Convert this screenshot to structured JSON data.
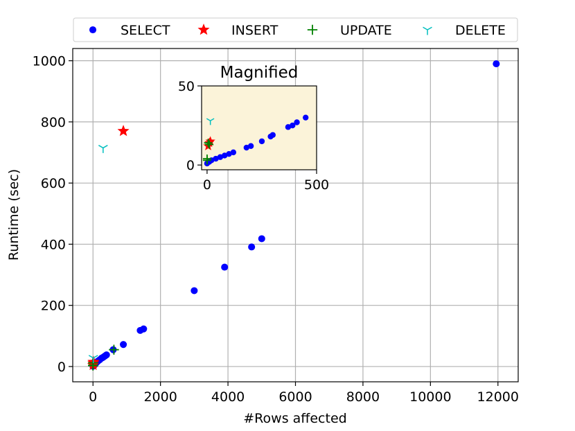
{
  "chart_data": {
    "type": "scatter",
    "xlabel": "#Rows affected",
    "ylabel": "Runtime (sec)",
    "xlim": [
      -600,
      12600
    ],
    "ylim": [
      -50,
      1040
    ],
    "xticks": [
      0,
      2000,
      4000,
      6000,
      8000,
      10000,
      12000
    ],
    "yticks": [
      0,
      200,
      400,
      600,
      800,
      1000
    ],
    "grid": true,
    "legend_position": "top",
    "series": [
      {
        "name": "SELECT",
        "marker": "dot",
        "color": "#0000ff",
        "points": [
          [
            0,
            1
          ],
          [
            10,
            2
          ],
          [
            20,
            3
          ],
          [
            40,
            5
          ],
          [
            60,
            7
          ],
          [
            80,
            10
          ],
          [
            120,
            15
          ],
          [
            150,
            18
          ],
          [
            200,
            22
          ],
          [
            250,
            27
          ],
          [
            300,
            30
          ],
          [
            350,
            34
          ],
          [
            400,
            38
          ],
          [
            600,
            55
          ],
          [
            900,
            72
          ],
          [
            1400,
            118
          ],
          [
            1500,
            123
          ],
          [
            3000,
            248
          ],
          [
            3900,
            325
          ],
          [
            4700,
            391
          ],
          [
            5000,
            418
          ],
          [
            11950,
            990
          ]
        ]
      },
      {
        "name": "INSERT",
        "marker": "star",
        "color": "#ff0000",
        "points": [
          [
            5,
            5
          ],
          [
            10,
            12
          ],
          [
            15,
            15
          ],
          [
            900,
            770
          ]
        ]
      },
      {
        "name": "UPDATE",
        "marker": "plus",
        "color": "#008000",
        "points": [
          [
            0,
            3
          ],
          [
            0,
            4
          ],
          [
            0,
            12
          ],
          [
            620,
            55
          ]
        ]
      },
      {
        "name": "DELETE",
        "marker": "tri",
        "color": "#00bfbf",
        "points": [
          [
            10,
            28
          ],
          [
            300,
            715
          ]
        ]
      }
    ],
    "inset": {
      "title": "Magnified",
      "xlim": [
        -25,
        500
      ],
      "ylim": [
        -3,
        50
      ],
      "xticks": [
        0,
        500
      ],
      "yticks": [
        0,
        50
      ],
      "background": "#fbf3d9",
      "series": [
        {
          "name": "SELECT",
          "points": [
            [
              0,
              1
            ],
            [
              10,
              2
            ],
            [
              20,
              3
            ],
            [
              40,
              4
            ],
            [
              60,
              5
            ],
            [
              80,
              6
            ],
            [
              100,
              7
            ],
            [
              120,
              8
            ],
            [
              180,
              11
            ],
            [
              200,
              12
            ],
            [
              250,
              15
            ],
            [
              290,
              18
            ],
            [
              300,
              19
            ],
            [
              370,
              24
            ],
            [
              390,
              25
            ],
            [
              410,
              27
            ],
            [
              450,
              30
            ]
          ]
        },
        {
          "name": "INSERT",
          "points": [
            [
              5,
              12
            ],
            [
              15,
              15
            ],
            [
              10,
              14
            ]
          ]
        },
        {
          "name": "UPDATE",
          "points": [
            [
              0,
              3
            ],
            [
              0,
              4
            ],
            [
              5,
              14
            ],
            [
              10,
              13
            ]
          ]
        },
        {
          "name": "DELETE",
          "points": [
            [
              15,
              28
            ]
          ]
        }
      ]
    }
  }
}
